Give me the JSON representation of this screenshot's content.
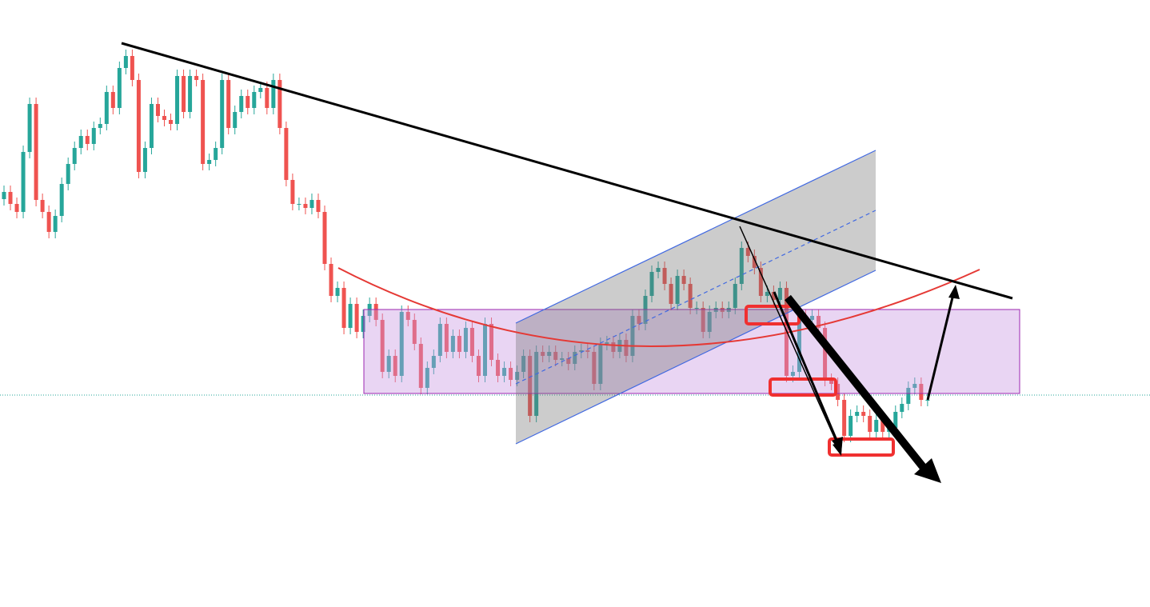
{
  "chart_data": {
    "type": "candlestick",
    "up_color": "#26a69a",
    "down_color": "#ef5350",
    "ylim": [
      0,
      759
    ],
    "open": [
      510,
      519,
      504,
      494,
      569,
      629,
      509,
      494,
      469,
      489,
      529,
      554,
      574,
      589,
      579,
      599,
      604,
      644,
      624,
      674,
      689,
      659,
      544,
      574,
      629,
      614,
      609,
      604,
      664,
      619,
      664,
      659,
      554,
      559,
      574,
      659,
      599,
      619,
      639,
      624,
      644,
      649,
      624,
      659,
      599,
      534,
      504,
      504,
      499,
      509,
      494,
      429,
      389,
      399,
      349,
      379,
      344,
      364,
      379,
      359,
      294,
      314,
      289,
      369,
      359,
      329,
      274,
      299,
      314,
      354,
      319,
      339,
      319,
      349,
      314,
      289,
      354,
      309,
      289,
      299,
      284,
      294,
      314,
      239,
      319,
      314,
      319,
      309,
      311,
      304,
      319,
      321,
      319,
      279,
      329,
      331,
      319,
      334,
      314,
      364,
      354,
      389,
      419,
      424,
      404,
      379,
      414,
      404,
      374,
      374,
      344,
      369,
      374,
      369,
      374,
      404,
      449,
      439,
      424,
      389,
      394,
      384,
      399,
      289,
      294,
      364,
      359,
      364,
      349,
      284,
      279,
      259,
      214,
      239,
      244,
      239,
      219,
      234,
      219,
      224,
      244,
      254,
      274,
      279,
      259
    ],
    "high": [
      527,
      527,
      512,
      577,
      637,
      637,
      517,
      502,
      497,
      537,
      562,
      582,
      597,
      597,
      607,
      612,
      652,
      652,
      682,
      697,
      697,
      667,
      582,
      637,
      637,
      622,
      617,
      672,
      672,
      672,
      672,
      667,
      567,
      582,
      667,
      667,
      627,
      647,
      647,
      652,
      657,
      657,
      667,
      667,
      607,
      542,
      512,
      512,
      517,
      517,
      502,
      437,
      407,
      407,
      387,
      387,
      372,
      387,
      387,
      367,
      322,
      322,
      377,
      377,
      367,
      337,
      307,
      322,
      362,
      362,
      347,
      347,
      357,
      357,
      322,
      362,
      362,
      317,
      307,
      307,
      302,
      322,
      322,
      327,
      327,
      327,
      327,
      319,
      319,
      327,
      329,
      329,
      327,
      337,
      339,
      339,
      342,
      342,
      372,
      372,
      397,
      427,
      432,
      432,
      412,
      422,
      422,
      412,
      382,
      382,
      377,
      382,
      382,
      382,
      412,
      457,
      457,
      447,
      432,
      402,
      402,
      407,
      407,
      302,
      372,
      372,
      372,
      372,
      357,
      292,
      287,
      267,
      247,
      252,
      252,
      247,
      242,
      242,
      232,
      252,
      262,
      282,
      287,
      287,
      267
    ],
    "low": [
      502,
      496,
      486,
      486,
      561,
      501,
      486,
      461,
      461,
      481,
      521,
      546,
      566,
      571,
      571,
      591,
      596,
      616,
      616,
      666,
      651,
      536,
      536,
      566,
      606,
      601,
      596,
      596,
      611,
      611,
      651,
      546,
      546,
      551,
      566,
      591,
      591,
      611,
      616,
      616,
      636,
      616,
      616,
      591,
      526,
      496,
      496,
      491,
      491,
      486,
      421,
      381,
      381,
      341,
      341,
      336,
      336,
      356,
      351,
      286,
      286,
      281,
      281,
      351,
      321,
      266,
      266,
      291,
      306,
      311,
      311,
      311,
      311,
      306,
      281,
      281,
      301,
      281,
      281,
      276,
      276,
      286,
      231,
      231,
      306,
      306,
      301,
      301,
      296,
      296,
      311,
      311,
      271,
      271,
      321,
      311,
      311,
      306,
      306,
      346,
      346,
      381,
      411,
      396,
      371,
      371,
      396,
      366,
      366,
      336,
      336,
      361,
      361,
      361,
      366,
      396,
      431,
      416,
      381,
      381,
      376,
      376,
      281,
      281,
      286,
      351,
      351,
      341,
      276,
      271,
      251,
      206,
      206,
      231,
      231,
      211,
      211,
      211,
      211,
      216,
      236,
      246,
      266,
      251,
      251
    ],
    "close": [
      519,
      504,
      494,
      569,
      629,
      509,
      494,
      469,
      489,
      529,
      554,
      574,
      589,
      579,
      599,
      604,
      644,
      624,
      674,
      689,
      659,
      544,
      574,
      629,
      614,
      609,
      604,
      664,
      619,
      664,
      659,
      554,
      559,
      574,
      659,
      599,
      619,
      639,
      624,
      644,
      649,
      624,
      659,
      599,
      534,
      504,
      504,
      499,
      509,
      494,
      429,
      389,
      399,
      349,
      379,
      344,
      364,
      379,
      359,
      294,
      314,
      289,
      369,
      359,
      329,
      274,
      299,
      314,
      354,
      319,
      339,
      319,
      349,
      314,
      289,
      354,
      309,
      289,
      299,
      284,
      294,
      314,
      239,
      319,
      314,
      319,
      309,
      311,
      304,
      319,
      321,
      319,
      279,
      329,
      331,
      319,
      334,
      314,
      364,
      354,
      389,
      419,
      424,
      404,
      379,
      414,
      404,
      374,
      374,
      344,
      369,
      374,
      369,
      374,
      404,
      449,
      439,
      424,
      389,
      394,
      384,
      399,
      289,
      294,
      364,
      359,
      364,
      349,
      284,
      279,
      259,
      214,
      239,
      244,
      239,
      219,
      234,
      219,
      224,
      244,
      254,
      274,
      279,
      259,
      259
    ]
  }
}
